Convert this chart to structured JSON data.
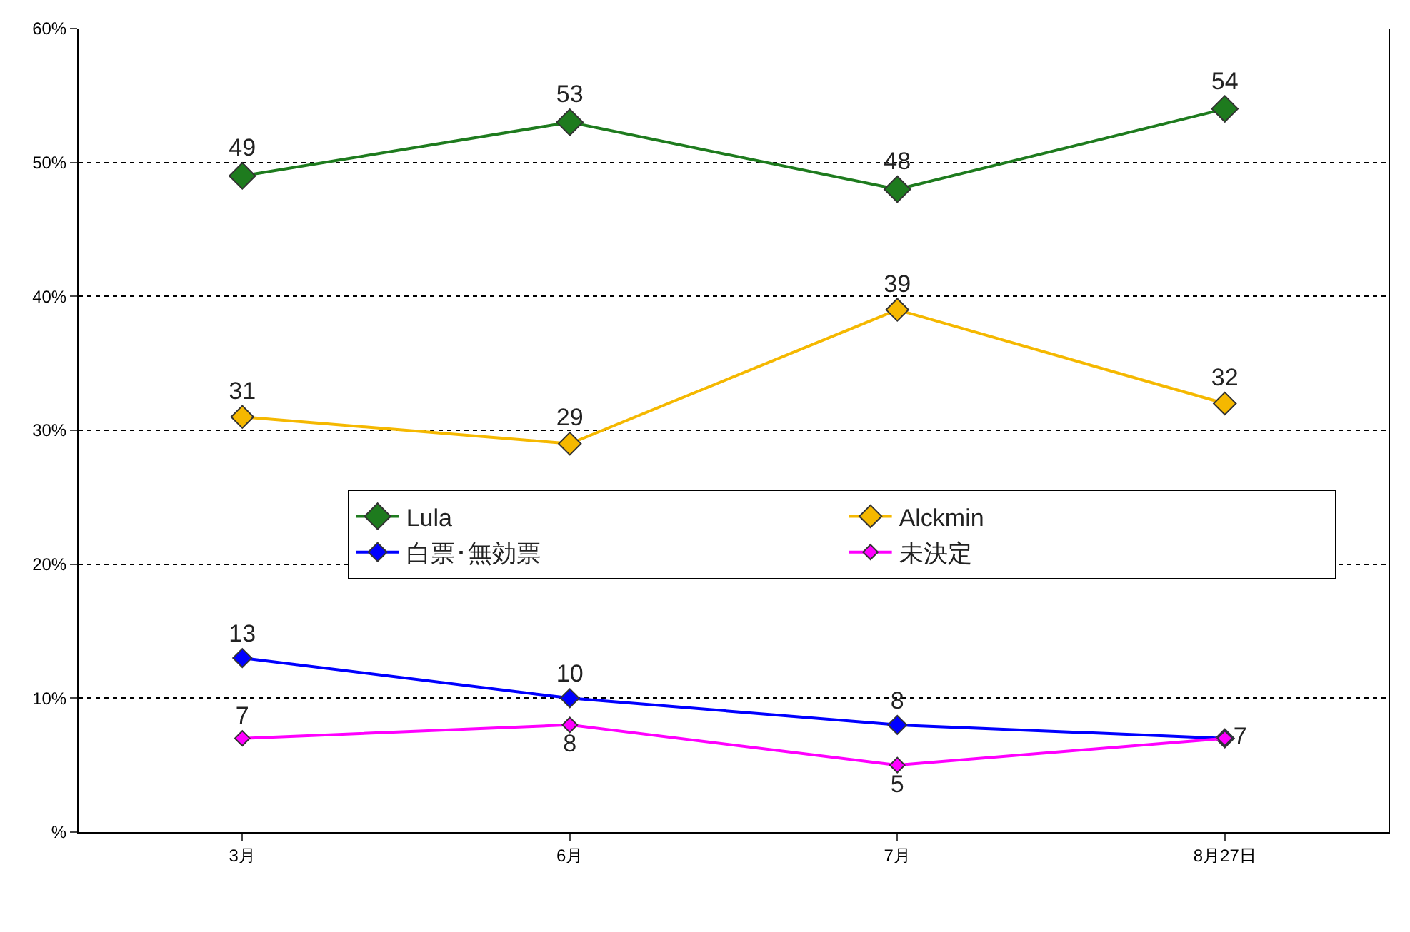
{
  "chart_data": {
    "type": "line",
    "categories": [
      "3月",
      "6月",
      "7月",
      "8月27日"
    ],
    "series": [
      {
        "name": "Lula",
        "color": "#1e7b1e",
        "values": [
          49,
          53,
          48,
          54
        ],
        "value_labels": [
          "49",
          "53",
          "48",
          "54"
        ]
      },
      {
        "name": "Alckmin",
        "color": "#f5b800",
        "values": [
          31,
          29,
          39,
          32
        ],
        "value_labels": [
          "31",
          "29",
          "39",
          "32"
        ]
      },
      {
        "name": "白票･無効票",
        "color": "#0000ff",
        "values": [
          13,
          10,
          8,
          7
        ],
        "value_labels": [
          "13",
          "10",
          "8",
          null
        ]
      },
      {
        "name": "未決定",
        "color": "#ff00ff",
        "values": [
          7,
          8,
          5,
          7
        ],
        "value_labels": [
          "7",
          "8",
          "5",
          "7"
        ]
      }
    ],
    "ylim": [
      0,
      60
    ],
    "yticks": [
      {
        "value": 0,
        "label": "%"
      },
      {
        "value": 10,
        "label": "10%"
      },
      {
        "value": 20,
        "label": "20%"
      },
      {
        "value": 30,
        "label": "30%"
      },
      {
        "value": 40,
        "label": "40%"
      },
      {
        "value": 50,
        "label": "50%"
      },
      {
        "value": 60,
        "label": "60%"
      }
    ],
    "grid": "y",
    "legend": "center right",
    "marker": "diamond",
    "line_style": "solid"
  }
}
